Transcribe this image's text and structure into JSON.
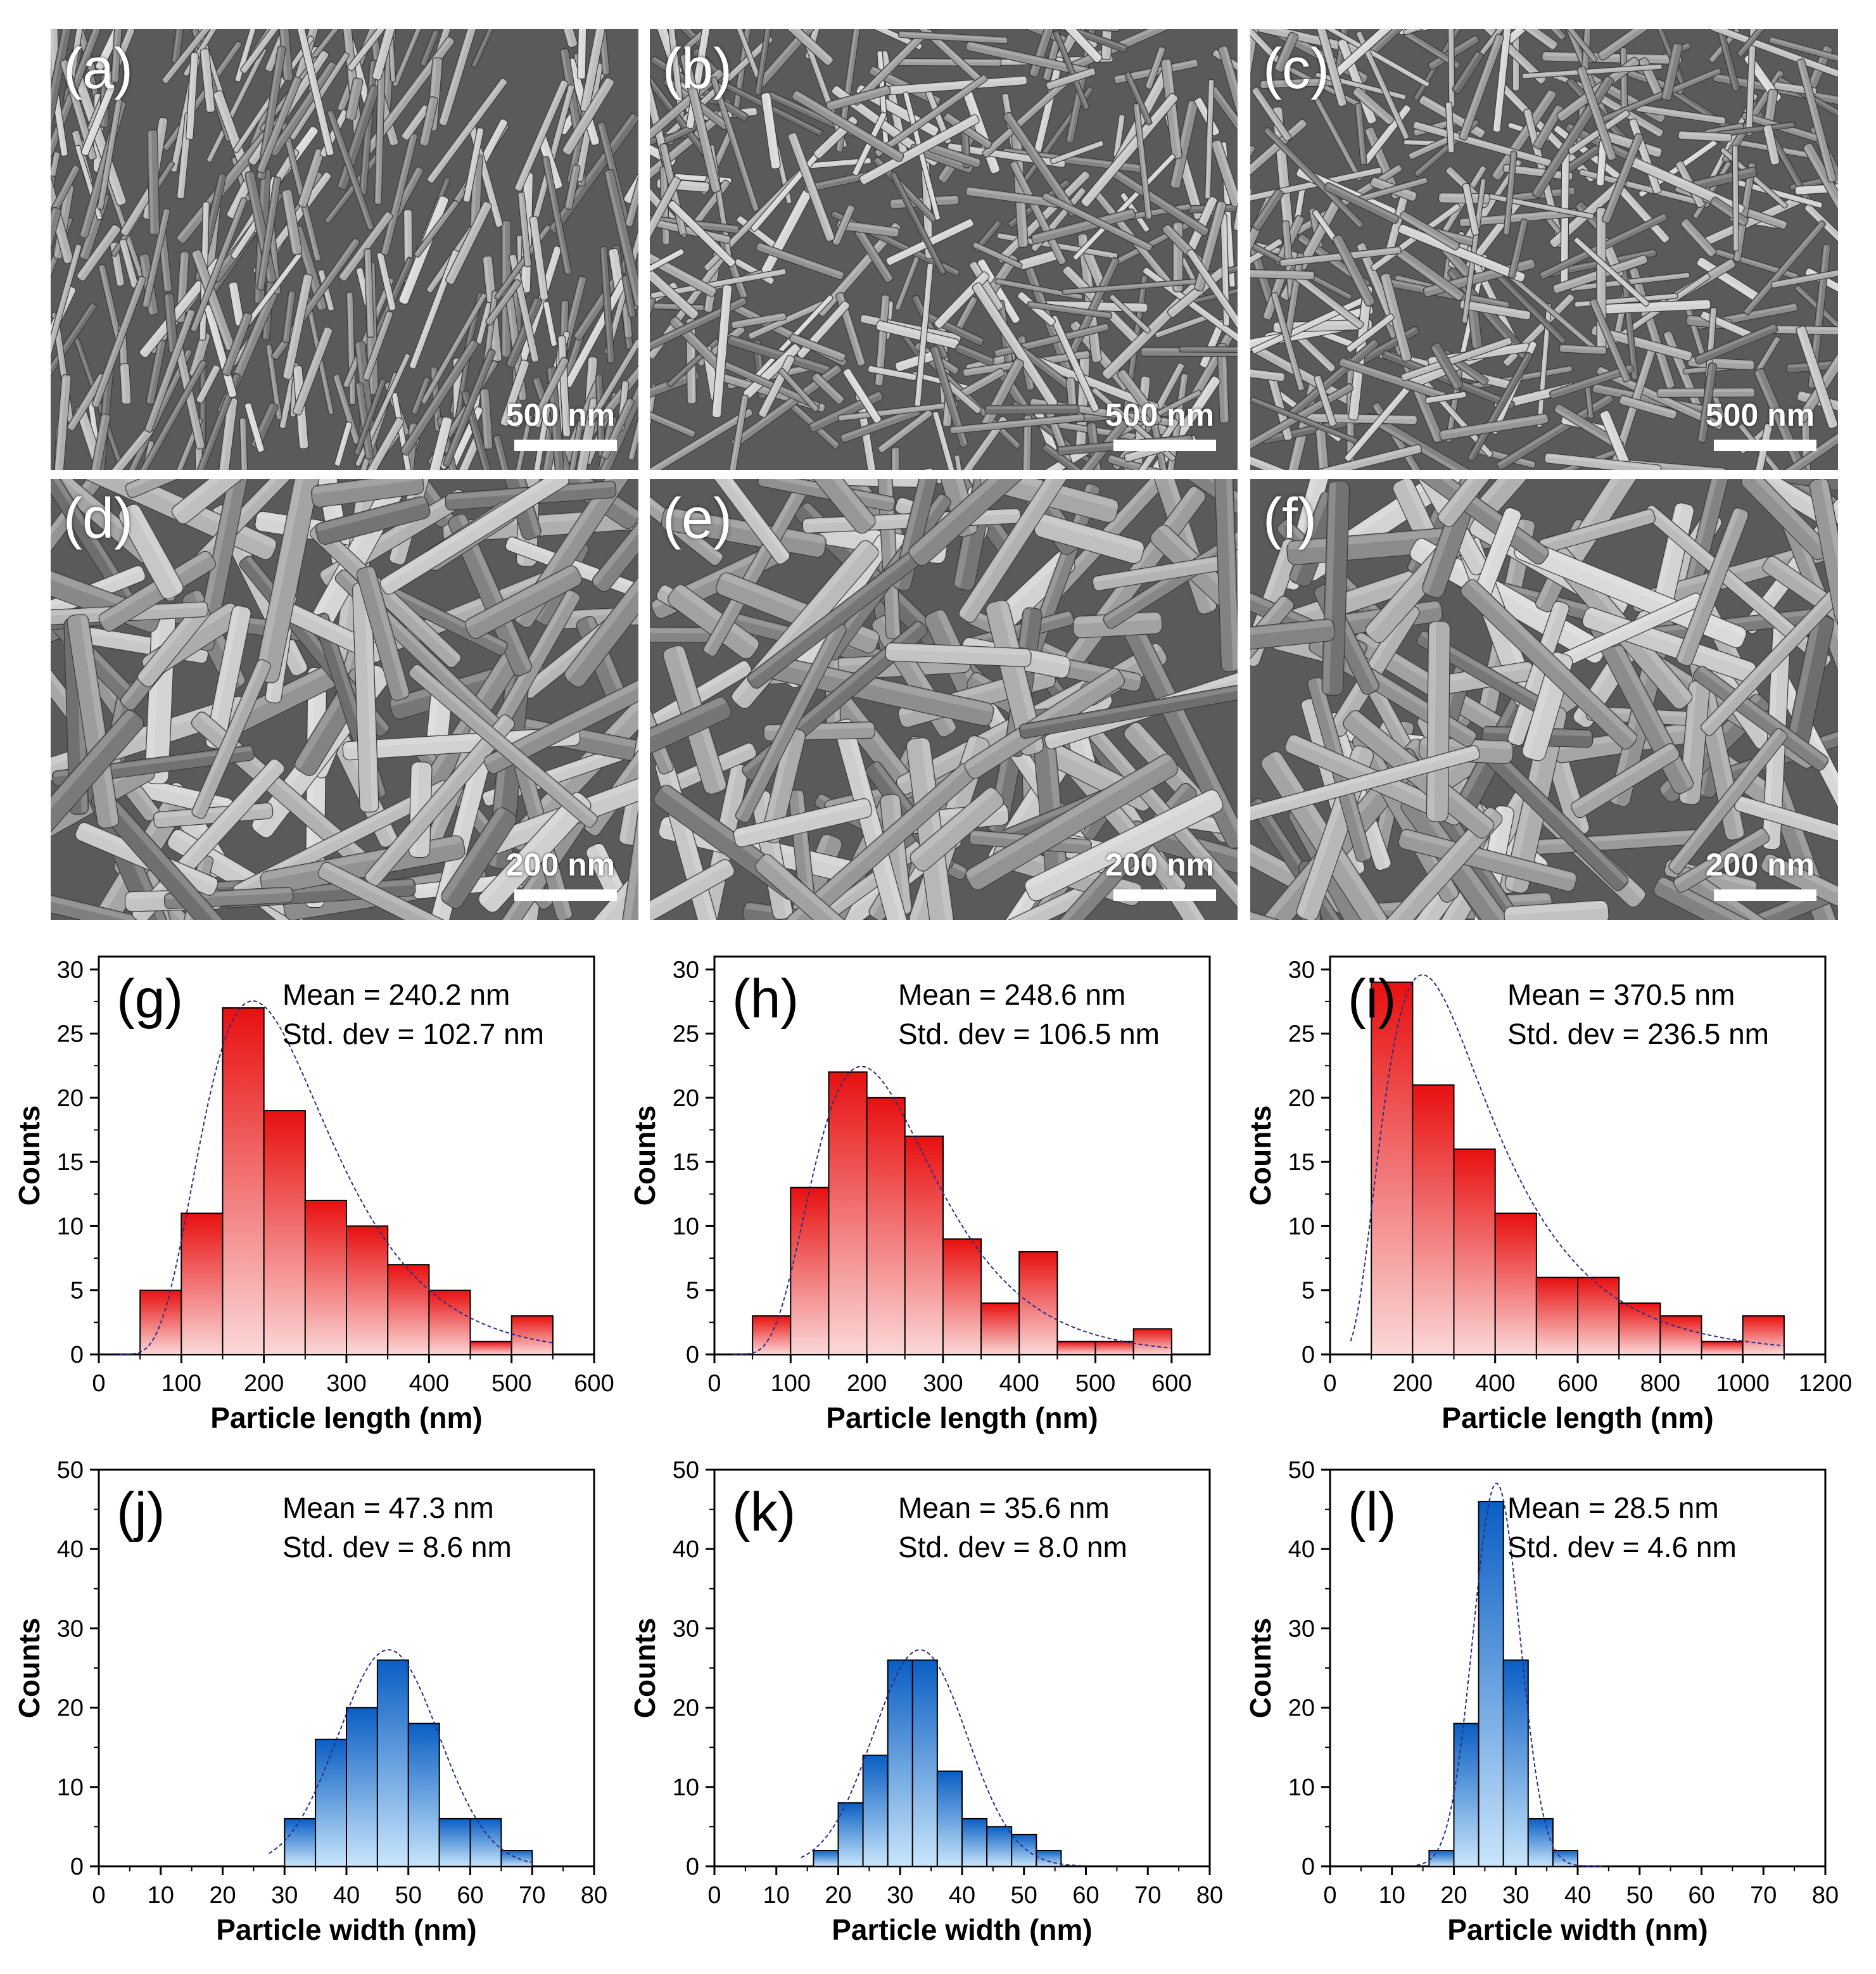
{
  "sem_panels": [
    {
      "label": "(a)",
      "scale": "500 nm"
    },
    {
      "label": "(b)",
      "scale": "500 nm"
    },
    {
      "label": "(c)",
      "scale": "500 nm"
    },
    {
      "label": "(d)",
      "scale": "200 nm"
    },
    {
      "label": "(e)",
      "scale": "200 nm"
    },
    {
      "label": "(f)",
      "scale": "200 nm"
    }
  ],
  "colors": {
    "length_bar_top": "#e81010",
    "length_bar_bottom": "#fbd8d8",
    "width_bar_top": "#0a5ec4",
    "width_bar_bottom": "#c9e6fb",
    "fit_line": "#2c2c86"
  },
  "chart_data": [
    {
      "type": "bar",
      "panel": "(g)",
      "xlabel": "Particle length (nm)",
      "ylabel": "Counts",
      "xlim": [
        0,
        600
      ],
      "ylim": [
        0,
        31
      ],
      "xticks": [
        0,
        100,
        200,
        300,
        400,
        500,
        600
      ],
      "yticks": [
        0,
        5,
        10,
        15,
        20,
        25,
        30
      ],
      "bin_width": 50,
      "x": [
        75,
        125,
        175,
        225,
        275,
        325,
        375,
        425,
        475,
        525
      ],
      "values": [
        5,
        11,
        27,
        19,
        12,
        10,
        7,
        5,
        1,
        3
      ],
      "annotations": [
        "Mean = 240.2 nm",
        "Std. dev = 102.7 nm"
      ],
      "fit": "lognormal",
      "color": "red"
    },
    {
      "type": "bar",
      "panel": "(h)",
      "xlabel": "Particle length (nm)",
      "ylabel": "Counts",
      "xlim": [
        0,
        650
      ],
      "ylim": [
        0,
        31
      ],
      "xticks": [
        0,
        100,
        200,
        300,
        400,
        500,
        600
      ],
      "yticks": [
        0,
        5,
        10,
        15,
        20,
        25,
        30
      ],
      "bin_width": 50,
      "x": [
        75,
        125,
        175,
        225,
        275,
        325,
        375,
        425,
        475,
        525,
        575
      ],
      "values": [
        3,
        13,
        22,
        20,
        17,
        9,
        4,
        8,
        1,
        1,
        2
      ],
      "annotations": [
        "Mean = 248.6 nm",
        "Std. dev = 106.5 nm"
      ],
      "fit": "lognormal",
      "color": "red"
    },
    {
      "type": "bar",
      "panel": "(i)",
      "xlabel": "Particle length (nm)",
      "ylabel": "Counts",
      "xlim": [
        0,
        1200
      ],
      "ylim": [
        0,
        31
      ],
      "xticks": [
        0,
        200,
        400,
        600,
        800,
        1000,
        1200
      ],
      "yticks": [
        0,
        5,
        10,
        15,
        20,
        25,
        30
      ],
      "bin_width": 100,
      "x": [
        150,
        250,
        350,
        450,
        550,
        650,
        750,
        850,
        950,
        1050
      ],
      "values": [
        29,
        21,
        16,
        11,
        6,
        6,
        4,
        3,
        1,
        3
      ],
      "annotations": [
        "Mean = 370.5 nm",
        "Std. dev = 236.5 nm"
      ],
      "fit": "lognormal",
      "color": "red"
    },
    {
      "type": "bar",
      "panel": "(j)",
      "xlabel": "Particle width (nm)",
      "ylabel": "Counts",
      "xlim": [
        0,
        80
      ],
      "ylim": [
        0,
        50
      ],
      "xticks": [
        0,
        10,
        20,
        30,
        40,
        50,
        60,
        70,
        80
      ],
      "yticks": [
        0,
        10,
        20,
        30,
        40,
        50
      ],
      "bin_width": 5,
      "x": [
        32.5,
        37.5,
        42.5,
        47.5,
        52.5,
        57.5,
        62.5,
        67.5
      ],
      "values": [
        6,
        16,
        20,
        26,
        18,
        6,
        6,
        2
      ],
      "annotations": [
        "Mean = 47.3 nm",
        "Std. dev = 8.6 nm"
      ],
      "fit": "gaussian",
      "color": "blue"
    },
    {
      "type": "bar",
      "panel": "(k)",
      "xlabel": "Particle width (nm)",
      "ylabel": "Counts",
      "xlim": [
        0,
        80
      ],
      "ylim": [
        0,
        50
      ],
      "xticks": [
        0,
        10,
        20,
        30,
        40,
        50,
        60,
        70,
        80
      ],
      "yticks": [
        0,
        10,
        20,
        30,
        40,
        50
      ],
      "bin_width": 4,
      "x": [
        18,
        22,
        26,
        30,
        34,
        38,
        42,
        46,
        50,
        54,
        58
      ],
      "values": [
        2,
        8,
        14,
        26,
        26,
        12,
        6,
        5,
        4,
        2,
        0
      ],
      "annotations": [
        "Mean = 35.6 nm",
        "Std. dev = 8.0 nm"
      ],
      "fit": "gaussian",
      "color": "blue"
    },
    {
      "type": "bar",
      "panel": "(l)",
      "xlabel": "Particle width (nm)",
      "ylabel": "Counts",
      "xlim": [
        0,
        80
      ],
      "ylim": [
        0,
        50
      ],
      "xticks": [
        0,
        10,
        20,
        30,
        40,
        50,
        60,
        70,
        80
      ],
      "yticks": [
        0,
        10,
        20,
        30,
        40,
        50
      ],
      "bin_width": 4,
      "x": [
        18,
        22,
        26,
        30,
        34,
        38,
        42
      ],
      "values": [
        2,
        18,
        46,
        26,
        6,
        2,
        0
      ],
      "annotations": [
        "Mean = 28.5 nm",
        "Std. dev = 4.6 nm"
      ],
      "fit": "gaussian",
      "color": "blue"
    }
  ]
}
